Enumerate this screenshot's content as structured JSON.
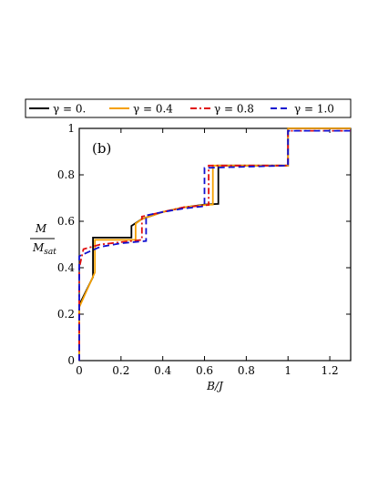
{
  "chart_data": {
    "type": "line",
    "panel_label": "(b)",
    "xlabel": "B/J",
    "ylabel": {
      "numerator": "M",
      "denominator": "M",
      "denominator_sub": "sat"
    },
    "xlim": [
      0,
      1.3
    ],
    "ylim": [
      0,
      1
    ],
    "xticks": [
      0,
      0.2,
      0.4,
      0.6,
      0.8,
      1,
      1.2
    ],
    "xtick_labels": [
      "0",
      "0.2",
      "0.4",
      "0.6",
      "0.8",
      "1",
      "1.2"
    ],
    "yticks": [
      0,
      0.2,
      0.4,
      0.6,
      0.8,
      1
    ],
    "ytick_labels": [
      "0",
      "0.2",
      "0.4",
      "0.6",
      "0.8",
      "1"
    ],
    "legend_position": "top, above plot",
    "grid": false,
    "series": [
      {
        "name": "γ = 0.",
        "color": "#000000",
        "dash": "solid",
        "points": [
          [
            0,
            0
          ],
          [
            0,
            0.24
          ],
          [
            0.066,
            0.36
          ],
          [
            0.066,
            0.53
          ],
          [
            0.25,
            0.53
          ],
          [
            0.25,
            0.58
          ],
          [
            0.3,
            0.61
          ],
          [
            0.4,
            0.64
          ],
          [
            0.5,
            0.66
          ],
          [
            0.6,
            0.672
          ],
          [
            0.666,
            0.675
          ],
          [
            0.666,
            0.84
          ],
          [
            1.0,
            0.84
          ],
          [
            1.0,
            1.0
          ],
          [
            1.3,
            1.0
          ]
        ]
      },
      {
        "name": "γ = 0.4",
        "color": "#f5a000",
        "dash": "solid",
        "points": [
          [
            0,
            0
          ],
          [
            0,
            0.23
          ],
          [
            0.075,
            0.38
          ],
          [
            0.075,
            0.52
          ],
          [
            0.1,
            0.52
          ],
          [
            0.27,
            0.52
          ],
          [
            0.27,
            0.59
          ],
          [
            0.3,
            0.61
          ],
          [
            0.4,
            0.64
          ],
          [
            0.5,
            0.66
          ],
          [
            0.6,
            0.67
          ],
          [
            0.64,
            0.672
          ],
          [
            0.64,
            0.84
          ],
          [
            1.0,
            0.84
          ],
          [
            1.0,
            1.0
          ],
          [
            1.3,
            1.0
          ]
        ]
      },
      {
        "name": "γ = 0.8",
        "color": "#e01010",
        "dash": "dashdot",
        "points": [
          [
            0,
            0
          ],
          [
            0,
            0.4
          ],
          [
            0.02,
            0.48
          ],
          [
            0.1,
            0.5
          ],
          [
            0.2,
            0.51
          ],
          [
            0.3,
            0.52
          ],
          [
            0.3,
            0.62
          ],
          [
            0.4,
            0.64
          ],
          [
            0.5,
            0.66
          ],
          [
            0.62,
            0.67
          ],
          [
            0.62,
            0.84
          ],
          [
            1.0,
            0.84
          ],
          [
            1.0,
            0.99
          ],
          [
            1.3,
            0.99
          ]
        ]
      },
      {
        "name": "γ = 1.0",
        "color": "#1010d0",
        "dash": "dash",
        "points": [
          [
            0,
            0
          ],
          [
            0,
            0.45
          ],
          [
            0.05,
            0.47
          ],
          [
            0.1,
            0.49
          ],
          [
            0.2,
            0.505
          ],
          [
            0.32,
            0.515
          ],
          [
            0.32,
            0.625
          ],
          [
            0.4,
            0.64
          ],
          [
            0.5,
            0.655
          ],
          [
            0.6,
            0.665
          ],
          [
            0.6,
            0.83
          ],
          [
            1.0,
            0.84
          ],
          [
            1.0,
            0.99
          ],
          [
            1.3,
            0.99
          ]
        ]
      }
    ]
  }
}
